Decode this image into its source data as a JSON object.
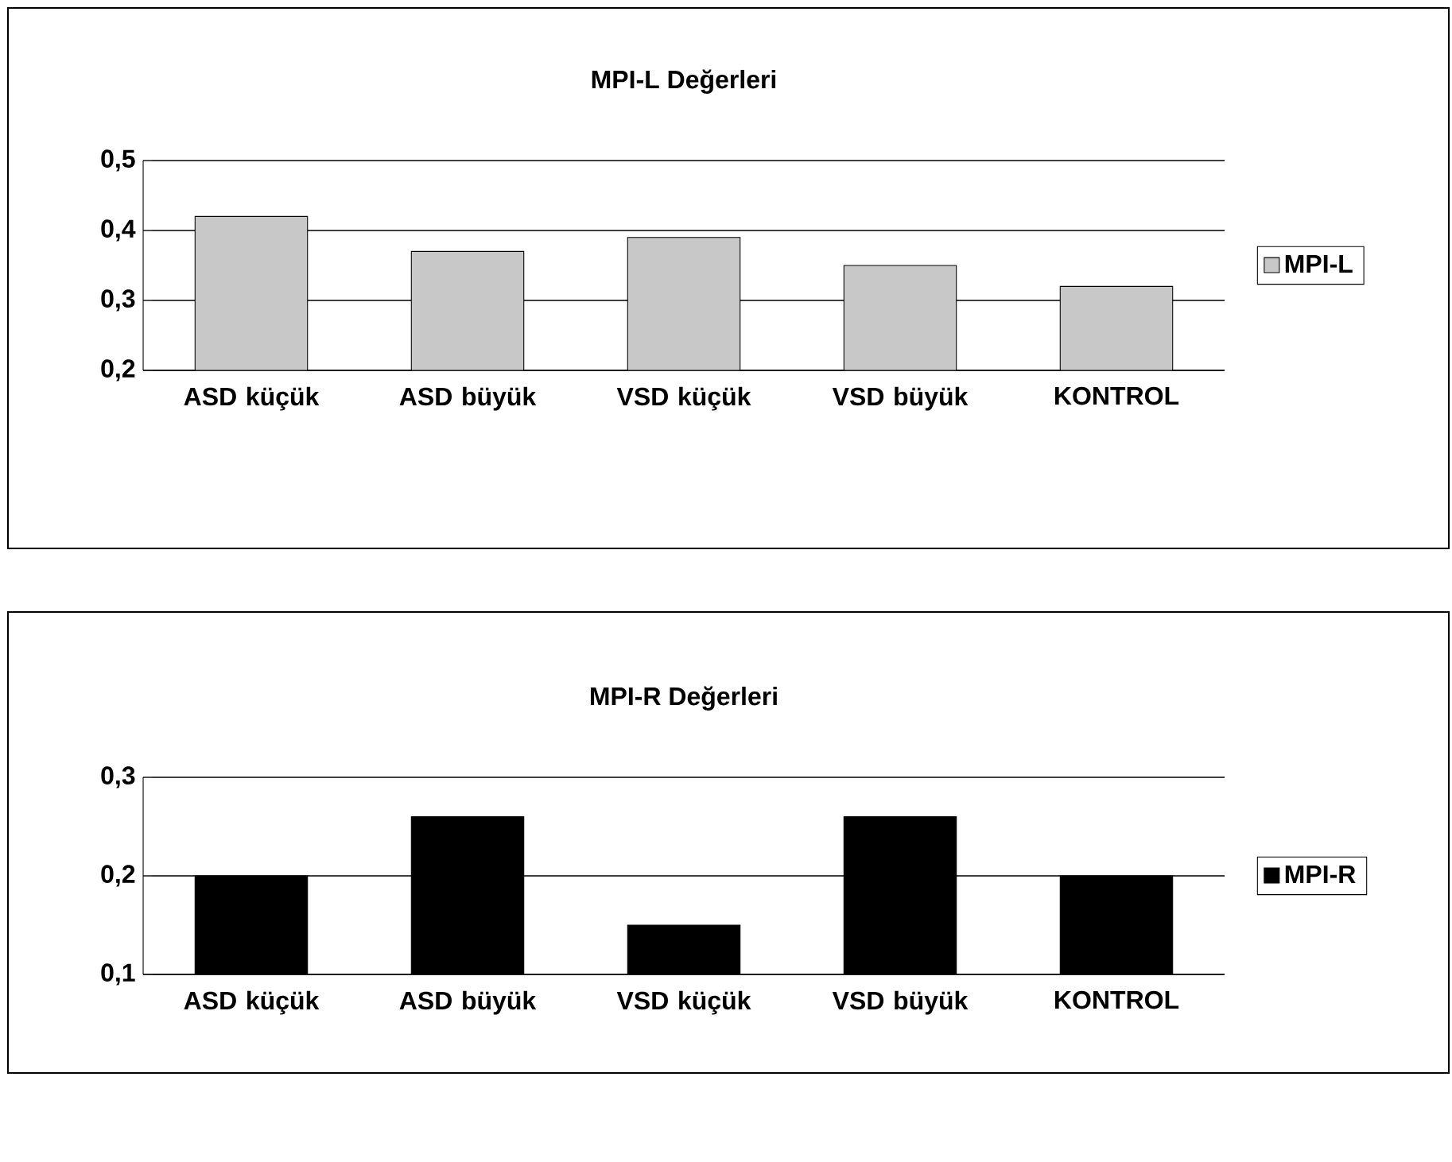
{
  "chart_data": [
    {
      "type": "bar",
      "title": "MPI-L Değerleri",
      "categories": [
        "ASD küçük",
        "ASD büyük",
        "VSD küçük",
        "VSD büyük",
        "KONTROL"
      ],
      "series": [
        {
          "name": "MPI-L",
          "color": "#c8c8c8",
          "values": [
            0.42,
            0.37,
            0.39,
            0.35,
            0.32
          ]
        }
      ],
      "ylim": [
        0.2,
        0.5
      ],
      "yticks": [
        {
          "value": 0.2,
          "label": "0,2"
        },
        {
          "value": 0.3,
          "label": "0,3"
        },
        {
          "value": 0.4,
          "label": "0,4"
        },
        {
          "value": 0.5,
          "label": "0,5"
        }
      ],
      "grid": "y",
      "legend": "right"
    },
    {
      "type": "bar",
      "title": "MPI-R Değerleri",
      "categories": [
        "ASD küçük",
        "ASD büyük",
        "VSD küçük",
        "VSD büyük",
        "KONTROL"
      ],
      "series": [
        {
          "name": "MPI-R",
          "color": "#000000",
          "values": [
            0.2,
            0.26,
            0.15,
            0.26,
            0.2
          ]
        }
      ],
      "ylim": [
        0.1,
        0.3
      ],
      "yticks": [
        {
          "value": 0.1,
          "label": "0,1"
        },
        {
          "value": 0.2,
          "label": "0,2"
        },
        {
          "value": 0.3,
          "label": "0,3"
        }
      ],
      "grid": "y",
      "legend": "right"
    }
  ]
}
